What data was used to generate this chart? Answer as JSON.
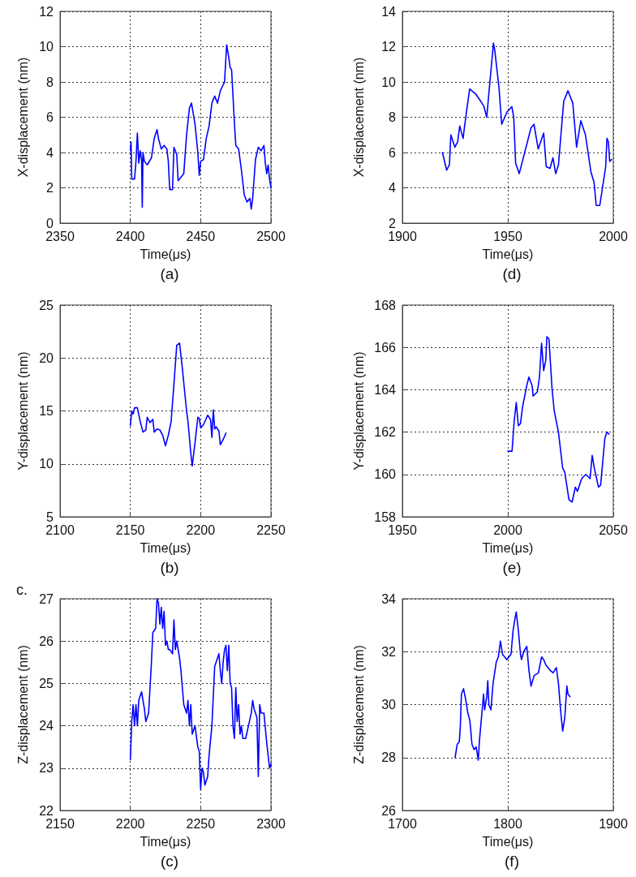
{
  "chart_data": [
    {
      "type": "line",
      "title": "(a)",
      "xlabel": "Time(μs)",
      "ylabel": "X-displacement (nm)",
      "xlim": [
        2350,
        2500
      ],
      "xticks": [
        2350,
        2400,
        2450,
        2500
      ],
      "ylim": [
        0,
        12
      ],
      "yticks": [
        0,
        2,
        4,
        6,
        8,
        10,
        12
      ],
      "grid": true,
      "marker": "none",
      "line_style": "solid",
      "series": [
        {
          "color": "#0000ff",
          "x": [
            2400,
            2400.5,
            2401,
            2403,
            2404,
            2405,
            2406,
            2407,
            2408,
            2408.5,
            2409,
            2410,
            2412,
            2415,
            2417,
            2419,
            2420,
            2422,
            2424,
            2426,
            2427,
            2428,
            2430,
            2431,
            2433,
            2434,
            2436,
            2438,
            2440,
            2442,
            2443.5,
            2446,
            2448,
            2449,
            2450,
            2452,
            2454,
            2456,
            2458,
            2460,
            2462,
            2464,
            2467,
            2468.5,
            2470,
            2471,
            2472,
            2474,
            2475,
            2477,
            2479,
            2481,
            2483,
            2485,
            2486,
            2487,
            2489,
            2491,
            2493,
            2495,
            2496,
            2497,
            2498,
            2499,
            2500
          ],
          "values": [
            4.1,
            4.6,
            2.5,
            2.5,
            3.5,
            5.1,
            3.4,
            4.1,
            3.6,
            0.9,
            4.0,
            3.5,
            3.3,
            3.7,
            4.8,
            5.3,
            4.8,
            4.2,
            4.4,
            4.2,
            3.5,
            1.9,
            1.9,
            4.3,
            3.9,
            2.4,
            2.6,
            2.8,
            5.0,
            6.5,
            6.8,
            5.6,
            4.0,
            2.7,
            3.5,
            3.6,
            4.8,
            5.5,
            6.8,
            7.2,
            6.8,
            7.5,
            8.0,
            10.1,
            9.4,
            8.8,
            8.7,
            5.7,
            4.4,
            4.2,
            3.0,
            1.6,
            1.2,
            1.4,
            0.8,
            1.4,
            3.6,
            4.3,
            4.1,
            4.4,
            3.4,
            2.8,
            3.3,
            2.5,
            2.0
          ]
        }
      ]
    },
    {
      "type": "line",
      "title": "(d)",
      "xlabel": "Time(μs)",
      "ylabel": "X-displacement (nm)",
      "xlim": [
        1900,
        2000
      ],
      "xticks": [
        1900,
        1950,
        2000
      ],
      "ylim": [
        2,
        14
      ],
      "yticks": [
        2,
        4,
        6,
        8,
        10,
        12,
        14
      ],
      "grid": true,
      "marker": "none",
      "line_style": "solid",
      "series": [
        {
          "color": "#0000ff",
          "x": [
            1919,
            1921,
            1922.3,
            1923,
            1924.9,
            1926.2,
            1927.2,
            1928.8,
            1929.4,
            1930.4,
            1931.9,
            1934.9,
            1937.2,
            1938.7,
            1940,
            1941.5,
            1943.2,
            1943.8,
            1945.8,
            1947.1,
            1949.6,
            1951.9,
            1952.8,
            1953.7,
            1955.4,
            1961,
            1962.4,
            1964.4,
            1967,
            1968.2,
            1970,
            1971.4,
            1972.7,
            1974,
            1976.5,
            1978.5,
            1980.8,
            1982.6,
            1984.6,
            1986.8,
            1989.4,
            1990.9,
            1991.9,
            1993.6,
            1996.4,
            1997,
            1997.7,
            1998.3,
            1999.2
          ],
          "values": [
            6.0,
            5.0,
            5.3,
            7.0,
            6.3,
            6.6,
            7.5,
            6.8,
            7.4,
            8.3,
            9.6,
            9.3,
            8.9,
            8.6,
            8.0,
            10.0,
            12.2,
            11.8,
            9.7,
            7.6,
            8.3,
            8.6,
            8.0,
            5.4,
            4.8,
            7.4,
            7.6,
            6.2,
            7.1,
            5.2,
            5.1,
            5.7,
            4.8,
            5.3,
            8.9,
            9.5,
            8.8,
            6.3,
            7.8,
            7.0,
            4.9,
            4.3,
            3.0,
            3.0,
            5.2,
            6.8,
            6.6,
            5.5,
            5.6
          ]
        }
      ]
    },
    {
      "type": "line",
      "title": "(b)",
      "xlabel": "Time(μs)",
      "ylabel": "Y-displacement (nm)",
      "xlim": [
        2100,
        2250
      ],
      "xticks": [
        2100,
        2150,
        2200,
        2250
      ],
      "ylim": [
        5,
        25
      ],
      "yticks": [
        5,
        10,
        15,
        20,
        25
      ],
      "grid": true,
      "marker": "none",
      "line_style": "solid",
      "series": [
        {
          "color": "#0000ff",
          "x": [
            2150,
            2151,
            2152,
            2153,
            2155,
            2157,
            2159,
            2161,
            2162,
            2164,
            2166,
            2167,
            2169,
            2171,
            2173,
            2175,
            2177,
            2179,
            2181,
            2183,
            2185,
            2187,
            2190,
            2191,
            2193,
            2194,
            2196,
            2198,
            2199,
            2200,
            2202,
            2205,
            2207,
            2208,
            2209,
            2210,
            2211,
            2213,
            2214,
            2216,
            2218
          ],
          "values": [
            13.6,
            15.0,
            14.7,
            15.3,
            15.3,
            14.0,
            13.0,
            13.2,
            14.4,
            13.9,
            14.2,
            13.0,
            13.3,
            13.2,
            12.7,
            11.7,
            12.7,
            14.0,
            17.5,
            21.2,
            21.4,
            19.0,
            15.0,
            14.0,
            11.0,
            9.8,
            12.0,
            14.4,
            14.3,
            13.4,
            13.7,
            14.6,
            14.2,
            12.5,
            15.1,
            13.3,
            13.5,
            13.1,
            11.8,
            12.3,
            12.9
          ]
        }
      ]
    },
    {
      "type": "line",
      "title": "(e)",
      "xlabel": "Time(μs)",
      "ylabel": "Y-displacement (nm)",
      "xlim": [
        1950,
        2050
      ],
      "xticks": [
        1950,
        2000,
        2050
      ],
      "ylim": [
        158,
        168
      ],
      "yticks": [
        158,
        160,
        162,
        164,
        166,
        168
      ],
      "grid": true,
      "marker": "none",
      "line_style": "solid",
      "series": [
        {
          "color": "#0000ff",
          "x": [
            2000,
            2001,
            2002,
            2003,
            2004,
            2005,
            2006,
            2007,
            2009,
            2010,
            2011.5,
            2012,
            2014,
            2015,
            2016,
            2017,
            2018,
            2018.5,
            2019.5,
            2021,
            2022,
            2024,
            2026,
            2027,
            2029,
            2030.5,
            2032,
            2033,
            2035,
            2037,
            2039,
            2040,
            2041,
            2043,
            2044,
            2046,
            2047,
            2048
          ],
          "values": [
            161.1,
            161.1,
            161.1,
            162.5,
            163.4,
            162.3,
            162.4,
            163.2,
            164.2,
            164.6,
            164.2,
            163.7,
            163.9,
            164.6,
            166.2,
            164.9,
            165.4,
            166.5,
            166.4,
            164.0,
            163.0,
            162.0,
            160.3,
            160.1,
            158.8,
            158.7,
            159.4,
            159.2,
            159.8,
            160.0,
            159.8,
            160.9,
            160.3,
            159.4,
            159.5,
            161.7,
            162.0,
            161.9
          ]
        }
      ]
    },
    {
      "type": "line",
      "title": "(c)",
      "xlabel": "Time(μs)",
      "ylabel": "Z-displacement (nm)",
      "annotations": [
        "c."
      ],
      "xlim": [
        2150,
        2300
      ],
      "xticks": [
        2150,
        2200,
        2250,
        2300
      ],
      "ylim": [
        22,
        27
      ],
      "yticks": [
        22,
        23,
        24,
        25,
        26,
        27
      ],
      "grid": true,
      "marker": "none",
      "line_style": "solid",
      "series": [
        {
          "color": "#0000ff",
          "x": [
            2200,
            2201,
            2202,
            2203,
            2204,
            2205,
            2206,
            2208,
            2210,
            2211,
            2213,
            2215,
            2216,
            2218,
            2219,
            2220,
            2221,
            2222,
            2223,
            2224,
            2225,
            2226,
            2227,
            2228,
            2230,
            2231,
            2232,
            2233,
            2235,
            2236,
            2238,
            2240,
            2241,
            2242,
            2243,
            2244,
            2246,
            2248,
            2249,
            2250,
            2251,
            2252,
            2253,
            2255,
            2256,
            2258,
            2260,
            2261,
            2263,
            2264,
            2265,
            2266,
            2267,
            2268,
            2269,
            2270,
            2271,
            2272,
            2273,
            2274,
            2275,
            2276,
            2277,
            2278,
            2279,
            2280,
            2282,
            2284,
            2286,
            2287,
            2288,
            2290,
            2291,
            2292,
            2293,
            2295,
            2297,
            2299,
            2300
          ],
          "values": [
            23.2,
            24.1,
            24.5,
            24.0,
            24.5,
            24.0,
            24.6,
            24.8,
            24.4,
            24.1,
            24.3,
            25.5,
            26.2,
            26.3,
            27.0,
            26.9,
            26.4,
            26.8,
            26.3,
            26.7,
            25.9,
            26.0,
            25.8,
            25.8,
            25.7,
            26.5,
            25.8,
            26.0,
            25.6,
            25.3,
            24.5,
            24.3,
            24.6,
            24.0,
            24.5,
            23.8,
            24.0,
            23.5,
            23.4,
            22.5,
            23.0,
            22.9,
            22.6,
            22.8,
            23.3,
            24.0,
            25.4,
            25.5,
            25.7,
            25.3,
            25.0,
            25.5,
            25.8,
            25.9,
            25.3,
            25.9,
            25.0,
            24.9,
            24.0,
            23.7,
            24.9,
            24.1,
            24.5,
            23.8,
            24.0,
            23.7,
            23.7,
            24.0,
            24.3,
            24.6,
            24.4,
            24.2,
            22.8,
            24.5,
            24.3,
            24.3,
            23.6,
            23.0,
            23.1
          ]
        }
      ]
    },
    {
      "type": "line",
      "title": "(f)",
      "xlabel": "Time(μs)",
      "ylabel": "Z-displacement (nm)",
      "xlim": [
        1700,
        1900
      ],
      "xticks": [
        1700,
        1800,
        1900
      ],
      "ylim": [
        26,
        34
      ],
      "yticks": [
        26,
        28,
        30,
        32,
        34
      ],
      "grid": true,
      "marker": "none",
      "line_style": "solid",
      "series": [
        {
          "color": "#0000ff",
          "x": [
            1750,
            1752,
            1754,
            1755,
            1756,
            1758,
            1760,
            1762,
            1764,
            1766,
            1768,
            1770,
            1772,
            1773,
            1775,
            1777,
            1778,
            1780,
            1781,
            1782,
            1784,
            1786,
            1789,
            1791,
            1793,
            1795,
            1797,
            1799,
            1801,
            1803,
            1805,
            1807,
            1808,
            1810,
            1812,
            1813,
            1815,
            1818,
            1820,
            1822,
            1825,
            1829,
            1832,
            1834,
            1836,
            1838,
            1840,
            1843,
            1846,
            1848,
            1850,
            1852,
            1854,
            1856,
            1857,
            1859
          ],
          "values": [
            28.0,
            28.5,
            28.6,
            29.2,
            30.4,
            30.6,
            30.2,
            29.7,
            29.4,
            28.5,
            28.3,
            28.4,
            27.9,
            28.6,
            29.5,
            30.4,
            29.8,
            30.3,
            30.9,
            30.0,
            29.8,
            30.8,
            31.6,
            31.8,
            32.4,
            31.9,
            31.8,
            31.7,
            31.8,
            31.9,
            32.8,
            33.3,
            33.5,
            32.8,
            31.9,
            31.7,
            32.0,
            32.2,
            31.3,
            30.7,
            31.1,
            31.2,
            31.8,
            31.7,
            31.5,
            31.4,
            31.3,
            31.2,
            31.4,
            30.8,
            29.8,
            29.0,
            29.5,
            30.7,
            30.4,
            30.3
          ]
        }
      ]
    }
  ]
}
